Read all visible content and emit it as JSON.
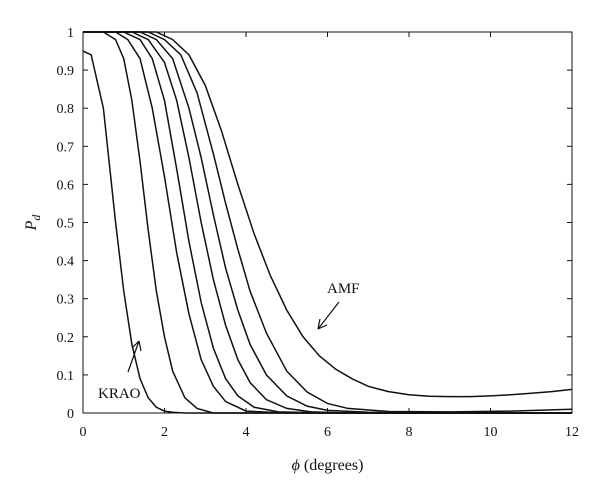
{
  "chart_data": {
    "type": "line",
    "title": "",
    "xlabel_symbol": "ϕ",
    "xlabel_text": " (degrees)",
    "ylabel_main": "P",
    "ylabel_sub": "d",
    "xlim": [
      0,
      12
    ],
    "ylim": [
      0,
      1
    ],
    "xticks": [
      0,
      2,
      4,
      6,
      8,
      10,
      12
    ],
    "yticks": [
      0,
      0.1,
      0.2,
      0.3,
      0.4,
      0.5,
      0.6,
      0.7,
      0.8,
      0.9,
      1
    ],
    "ytick_labels": [
      "0",
      "0.1",
      "0.2",
      "0.3",
      "0.4",
      "0.5",
      "0.6",
      "0.7",
      "0.8",
      "0.9",
      "1"
    ],
    "xtick_labels": [
      "0",
      "2",
      "4",
      "6",
      "8",
      "10",
      "12"
    ],
    "grid": false,
    "annotations": [
      {
        "text": "KRAO",
        "x": 1.4,
        "y": 0.19
      },
      {
        "text": "AMF",
        "x": 5.6,
        "y": 0.22
      }
    ],
    "series": [
      {
        "x": [
          0,
          0.2,
          0.5,
          0.8,
          1.0,
          1.2,
          1.4,
          1.6,
          1.8,
          2.0,
          2.2,
          2.5,
          3.0,
          4,
          6,
          8,
          10,
          12
        ],
        "y": [
          0.95,
          0.94,
          0.8,
          0.5,
          0.32,
          0.18,
          0.09,
          0.04,
          0.015,
          0.005,
          0.002,
          0,
          0,
          0,
          0,
          0,
          0,
          0
        ]
      },
      {
        "x": [
          0,
          0.5,
          0.8,
          1.0,
          1.2,
          1.4,
          1.6,
          1.8,
          2.0,
          2.2,
          2.5,
          2.8,
          3.2,
          4,
          6,
          8,
          10,
          12
        ],
        "y": [
          1,
          1,
          0.98,
          0.93,
          0.82,
          0.66,
          0.48,
          0.32,
          0.2,
          0.11,
          0.04,
          0.012,
          0,
          0,
          0,
          0,
          0,
          0
        ]
      },
      {
        "x": [
          0,
          0.8,
          1.1,
          1.4,
          1.7,
          2.0,
          2.3,
          2.6,
          2.9,
          3.2,
          3.5,
          4.0,
          5,
          6,
          8,
          10,
          12
        ],
        "y": [
          1,
          1,
          0.98,
          0.93,
          0.8,
          0.62,
          0.42,
          0.26,
          0.14,
          0.07,
          0.03,
          0.005,
          0,
          0,
          0,
          0,
          0
        ]
      },
      {
        "x": [
          0,
          1.0,
          1.4,
          1.7,
          2.0,
          2.3,
          2.6,
          2.9,
          3.2,
          3.5,
          3.8,
          4.2,
          4.8,
          6,
          8,
          10,
          12
        ],
        "y": [
          1,
          1,
          0.98,
          0.93,
          0.82,
          0.64,
          0.45,
          0.29,
          0.17,
          0.09,
          0.045,
          0.015,
          0.003,
          0,
          0,
          0,
          0
        ]
      },
      {
        "x": [
          0,
          1.2,
          1.6,
          2.0,
          2.3,
          2.6,
          2.9,
          3.2,
          3.5,
          3.8,
          4.1,
          4.5,
          5.0,
          5.6,
          6.5,
          8,
          10,
          12
        ],
        "y": [
          1,
          1,
          0.98,
          0.92,
          0.82,
          0.67,
          0.5,
          0.35,
          0.23,
          0.14,
          0.08,
          0.035,
          0.012,
          0.003,
          0,
          0,
          0,
          0
        ]
      },
      {
        "x": [
          0,
          1.4,
          1.8,
          2.2,
          2.6,
          2.9,
          3.2,
          3.5,
          3.8,
          4.1,
          4.5,
          5.0,
          5.5,
          6.0,
          7,
          8,
          10,
          12
        ],
        "y": [
          1,
          1,
          0.98,
          0.93,
          0.8,
          0.67,
          0.52,
          0.38,
          0.27,
          0.18,
          0.1,
          0.045,
          0.018,
          0.007,
          0.002,
          0,
          0,
          0
        ]
      },
      {
        "x": [
          0,
          1.6,
          2.0,
          2.4,
          2.8,
          3.2,
          3.5,
          3.8,
          4.1,
          4.5,
          5.0,
          5.5,
          6.0,
          6.5,
          7.5,
          9,
          10.5,
          12
        ],
        "y": [
          1,
          1,
          0.98,
          0.94,
          0.84,
          0.68,
          0.55,
          0.43,
          0.32,
          0.21,
          0.11,
          0.055,
          0.025,
          0.012,
          0.004,
          0.003,
          0.005,
          0.01
        ]
      },
      {
        "x": [
          0,
          1.8,
          2.2,
          2.6,
          3.0,
          3.4,
          3.8,
          4.2,
          4.6,
          5.0,
          5.4,
          5.8,
          6.2,
          6.6,
          7.0,
          7.5,
          8.0,
          8.5,
          9.0,
          9.5,
          10.0,
          10.5,
          11.0,
          11.5,
          12.0
        ],
        "y": [
          1,
          1,
          0.98,
          0.94,
          0.86,
          0.74,
          0.6,
          0.47,
          0.36,
          0.27,
          0.2,
          0.15,
          0.115,
          0.09,
          0.07,
          0.056,
          0.048,
          0.044,
          0.043,
          0.043,
          0.045,
          0.048,
          0.052,
          0.056,
          0.062
        ]
      }
    ]
  }
}
